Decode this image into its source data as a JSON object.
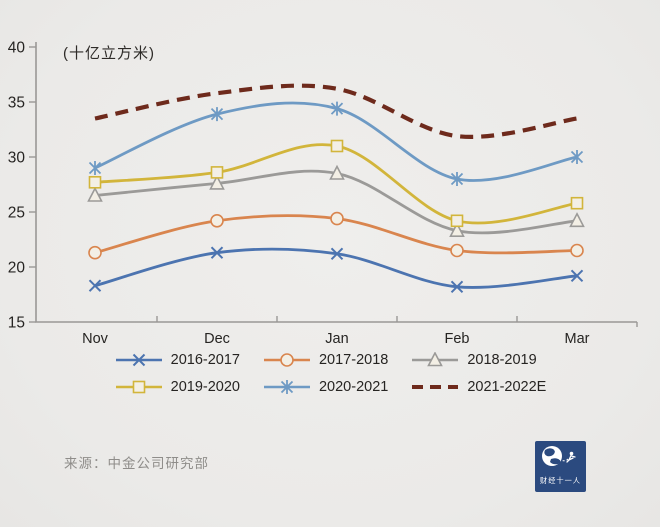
{
  "chart_data": {
    "type": "line",
    "title": "",
    "unit_label": "(十亿立方米)",
    "categories": [
      "Nov",
      "Dec",
      "Jan",
      "Feb",
      "Mar"
    ],
    "y_ticks": [
      15,
      20,
      25,
      30,
      35,
      40
    ],
    "ylim": [
      15,
      40
    ],
    "grid": false,
    "legend_position": "bottom",
    "series": [
      {
        "name": "2016-2017",
        "color": "#4c74b0",
        "marker": "x",
        "dashed": false,
        "values": [
          18.3,
          21.3,
          21.2,
          18.2,
          19.2
        ]
      },
      {
        "name": "2017-2018",
        "color": "#d9854e",
        "marker": "circle",
        "dashed": false,
        "values": [
          21.3,
          24.2,
          24.4,
          21.5,
          21.5
        ]
      },
      {
        "name": "2018-2019",
        "color": "#9b9a98",
        "marker": "triangle",
        "dashed": false,
        "values": [
          26.5,
          27.6,
          28.5,
          23.3,
          24.2
        ]
      },
      {
        "name": "2019-2020",
        "color": "#d2b53b",
        "marker": "square",
        "dashed": false,
        "values": [
          27.7,
          28.6,
          31.0,
          24.2,
          25.8
        ]
      },
      {
        "name": "2020-2021",
        "color": "#6e9ac4",
        "marker": "asterisk",
        "dashed": false,
        "values": [
          29.0,
          33.9,
          34.4,
          28.0,
          30.0
        ]
      },
      {
        "name": "2021-2022E",
        "color": "#6e2a1c",
        "marker": "none",
        "dashed": true,
        "values": [
          33.5,
          35.8,
          36.2,
          31.9,
          33.5
        ]
      }
    ],
    "marker_fill": "#f3efe5",
    "axis_color": "#9a9896",
    "tick_label_color": "#262422"
  },
  "footer": {
    "source": "来源：中金公司研究部"
  },
  "logo": {
    "text": "财经十一人",
    "bg": "#2b4a7f"
  }
}
